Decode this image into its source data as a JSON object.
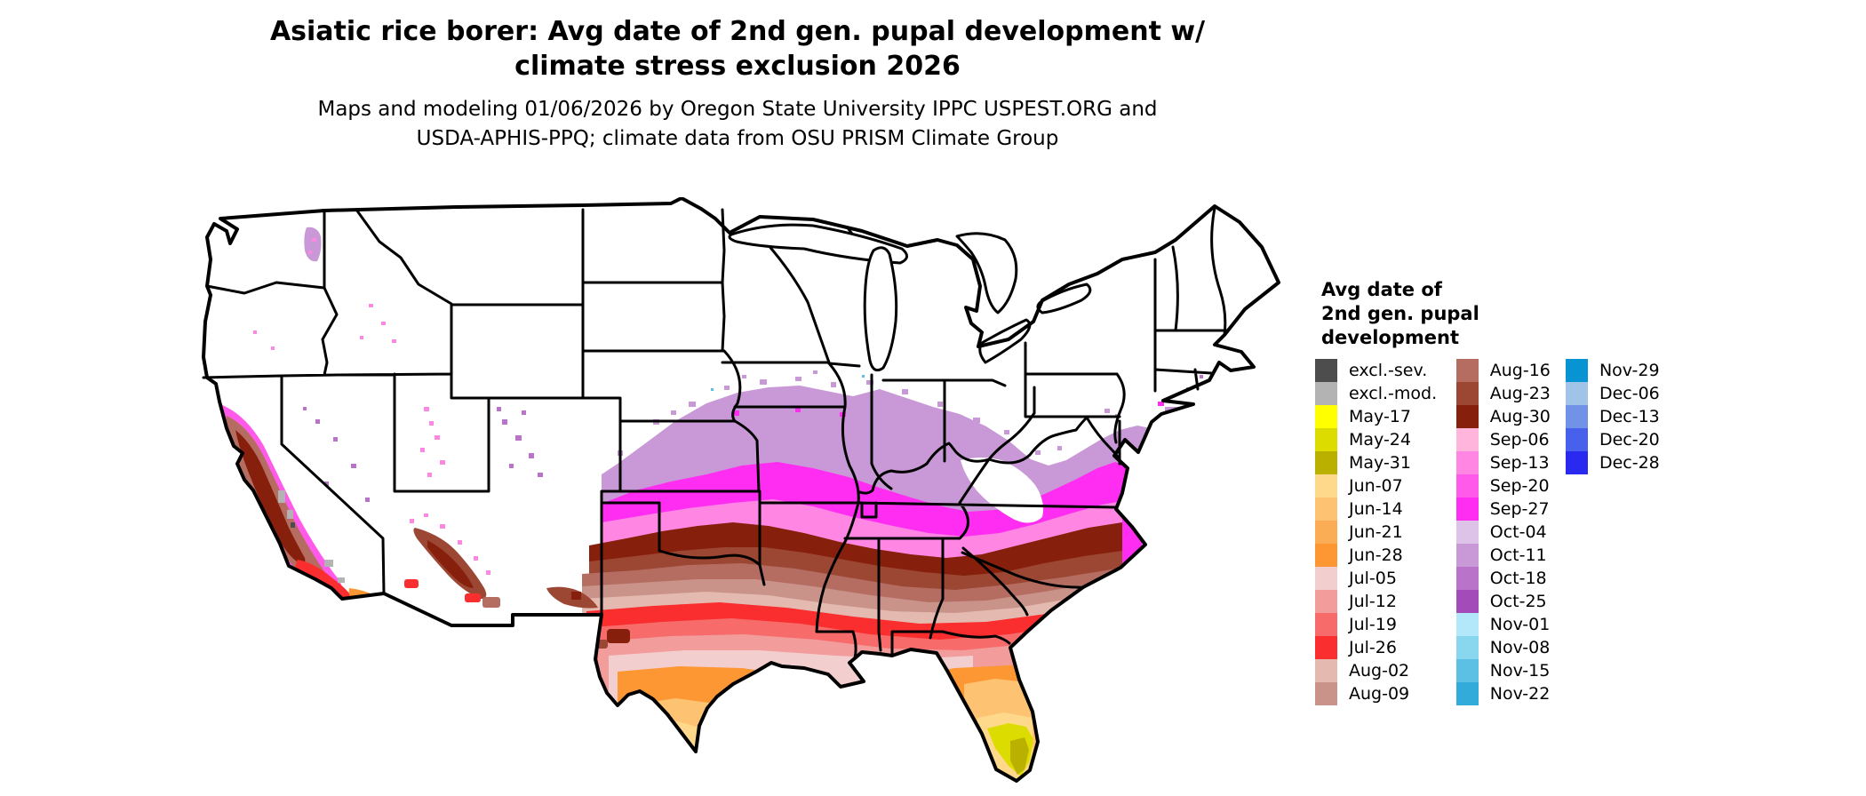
{
  "header": {
    "title_line1": "Asiatic rice borer: Avg date of 2nd gen. pupal development w/",
    "title_line2": "climate stress exclusion 2026",
    "subtitle_line1": "Maps and modeling 01/06/2026 by Oregon State University IPPC USPEST.ORG and",
    "subtitle_line2": "USDA-APHIS-PPQ; climate data from OSU PRISM Climate Group"
  },
  "legend": {
    "title_lines": [
      "Avg date of",
      "2nd gen. pupal",
      "development"
    ],
    "columns": [
      [
        {
          "label": "excl.-sev.",
          "color": "#4d4d4d"
        },
        {
          "label": "excl.-mod.",
          "color": "#b3b3b3"
        },
        {
          "label": "May-17",
          "color": "#ffff00"
        },
        {
          "label": "May-24",
          "color": "#dcdc00"
        },
        {
          "label": "May-31",
          "color": "#b9b000"
        },
        {
          "label": "Jun-07",
          "color": "#ffd98b"
        },
        {
          "label": "Jun-14",
          "color": "#fec372"
        },
        {
          "label": "Jun-21",
          "color": "#fbad55"
        },
        {
          "label": "Jun-28",
          "color": "#fd9733"
        },
        {
          "label": "Jul-05",
          "color": "#f2cece"
        },
        {
          "label": "Jul-12",
          "color": "#f29c9c"
        },
        {
          "label": "Jul-19",
          "color": "#f76b6b"
        },
        {
          "label": "Jul-26",
          "color": "#fa2e2e"
        },
        {
          "label": "Aug-02",
          "color": "#e4b9af"
        },
        {
          "label": "Aug-09",
          "color": "#c9938a"
        }
      ],
      [
        {
          "label": "Aug-16",
          "color": "#b56d62"
        },
        {
          "label": "Aug-23",
          "color": "#9c4733"
        },
        {
          "label": "Aug-30",
          "color": "#86200c"
        },
        {
          "label": "Sep-06",
          "color": "#ffb5dc"
        },
        {
          "label": "Sep-13",
          "color": "#ff87e3"
        },
        {
          "label": "Sep-20",
          "color": "#ff5ae9"
        },
        {
          "label": "Sep-27",
          "color": "#fe2df1"
        },
        {
          "label": "Oct-04",
          "color": "#dec3e9"
        },
        {
          "label": "Oct-11",
          "color": "#c998d6"
        },
        {
          "label": "Oct-18",
          "color": "#b973c9"
        },
        {
          "label": "Oct-25",
          "color": "#a44bba"
        },
        {
          "label": "Nov-01",
          "color": "#b3e8fa"
        },
        {
          "label": "Nov-08",
          "color": "#89d6ef"
        },
        {
          "label": "Nov-15",
          "color": "#5bc0e4"
        },
        {
          "label": "Nov-22",
          "color": "#32aada"
        }
      ],
      [
        {
          "label": "Nov-29",
          "color": "#0894d2"
        },
        {
          "label": "Dec-06",
          "color": "#9fc4e8"
        },
        {
          "label": "Dec-13",
          "color": "#7292e8"
        },
        {
          "label": "Dec-20",
          "color": "#4861ed"
        },
        {
          "label": "Dec-28",
          "color": "#2929f0"
        }
      ]
    ]
  },
  "chart_data": {
    "type": "heatmap",
    "title": "Asiatic rice borer: Avg date of 2nd gen. pupal development w/ climate stress exclusion 2026",
    "legend_title": "Avg date of 2nd gen. pupal development",
    "classes": [
      "excl.-sev.",
      "excl.-mod.",
      "May-17",
      "May-24",
      "May-31",
      "Jun-07",
      "Jun-14",
      "Jun-21",
      "Jun-28",
      "Jul-05",
      "Jul-12",
      "Jul-19",
      "Jul-26",
      "Aug-02",
      "Aug-09",
      "Aug-16",
      "Aug-23",
      "Aug-30",
      "Sep-06",
      "Sep-13",
      "Sep-20",
      "Sep-27",
      "Oct-04",
      "Oct-11",
      "Oct-18",
      "Oct-25",
      "Nov-01",
      "Nov-08",
      "Nov-15",
      "Nov-22",
      "Nov-29",
      "Dec-06",
      "Dec-13",
      "Dec-20",
      "Dec-28"
    ],
    "region_notes": "US map: northern states white/no value; purple (Oct) fringe across NE-IA-IL-IN-OH; magenta/pink (Sep) band KS-MO-IL-IN-KY-VA; dark brown (Aug-30) OK-AR-TN-NC; brown/terracotta (Aug) band; red (Jul-26) central TX-LA-MS-AL-GA; salmon/pale pink (Jul) gulf coast; orange (Jun) south TX and central FL; yellow-green (May) south FL; yellow (May-17) FL keys; CA central valley brown/red with magenta fringe; gray exclusion patches in CA deserts"
  },
  "map": {
    "background": "#ffffff",
    "border_color": "#000000",
    "fills": {
      "excl_sev": "#4d4d4d",
      "excl_mod": "#b3b3b3",
      "may17": "#ffff00",
      "may24": "#dcdc00",
      "may31": "#b9b000",
      "jun07": "#ffd98b",
      "jun14": "#fec372",
      "jun21": "#fbad55",
      "jun28": "#fd9733",
      "jul05": "#f2cece",
      "jul12": "#f29c9c",
      "jul19": "#f76b6b",
      "jul26": "#fa2e2e",
      "aug02": "#e4b9af",
      "aug09": "#c9938a",
      "aug16": "#b56d62",
      "aug23": "#9c4733",
      "aug30": "#86200c",
      "sep06": "#ffb5dc",
      "sep13": "#ff87e3",
      "sep20": "#ff5ae9",
      "sep27": "#fe2df1",
      "oct04": "#dec3e9",
      "oct11": "#c998d6",
      "oct18": "#b973c9",
      "oct25": "#a44bba",
      "nov01": "#b3e8fa",
      "nov08": "#89d6ef",
      "nov15": "#5bc0e4",
      "nov22": "#32aada",
      "white": "#ffffff"
    }
  }
}
